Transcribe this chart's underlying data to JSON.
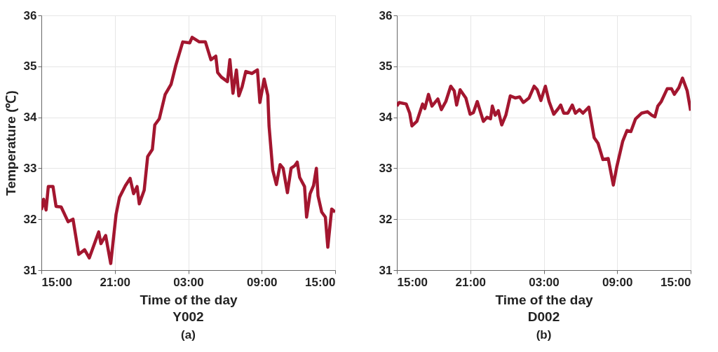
{
  "chart_data": [
    {
      "type": "line",
      "title": "Y002",
      "subtitle": "(a)",
      "xlabel": "Time of the day",
      "ylabel": "Temperature (℃)",
      "xlim": [
        "2000-01-01T15:00",
        "2000-01-02T15:00"
      ],
      "xticks": [
        {
          "value": "2000-01-01T15:00",
          "label": "15:00"
        },
        {
          "value": "2000-01-01T21:00",
          "label": "21:00"
        },
        {
          "value": "2000-01-02T03:00",
          "label": "03:00"
        },
        {
          "value": "2000-01-02T09:00",
          "label": "09:00"
        },
        {
          "value": "2000-01-02T15:00",
          "label": "15:00"
        }
      ],
      "ylim": [
        31,
        36
      ],
      "yticks": [
        31,
        32,
        33,
        34,
        35,
        36
      ],
      "grid": true,
      "legend": false,
      "marker": "none",
      "line_style": "solid",
      "series": [
        {
          "color": "#a3162f",
          "x": [
            "2000-01-01T15:00",
            "2000-01-01T15:11",
            "2000-01-01T15:23",
            "2000-01-01T15:34",
            "2000-01-01T15:57",
            "2000-01-01T16:12",
            "2000-01-01T16:37",
            "2000-01-01T17:11",
            "2000-01-01T17:35",
            "2000-01-01T18:03",
            "2000-01-01T18:32",
            "2000-01-01T18:55",
            "2000-01-01T19:41",
            "2000-01-01T19:52",
            "2000-01-01T20:15",
            "2000-01-01T20:40",
            "2000-01-01T21:06",
            "2000-01-01T21:23",
            "2000-01-01T21:52",
            "2000-01-01T22:15",
            "2000-01-01T22:32",
            "2000-01-01T22:49",
            "2000-01-01T23:00",
            "2000-01-01T23:24",
            "2000-01-01T23:41",
            "2000-01-02T00:04",
            "2000-01-02T00:16",
            "2000-01-02T00:38",
            "2000-01-02T01:07",
            "2000-01-02T01:36",
            "2000-01-02T01:59",
            "2000-01-02T02:33",
            "2000-01-02T03:07",
            "2000-01-02T03:19",
            "2000-01-02T03:54",
            "2000-01-02T04:24",
            "2000-01-02T04:51",
            "2000-01-02T05:15",
            "2000-01-02T05:24",
            "2000-01-02T05:42",
            "2000-01-02T06:12",
            "2000-01-02T06:24",
            "2000-01-02T06:39",
            "2000-01-02T06:56",
            "2000-01-02T07:08",
            "2000-01-02T07:24",
            "2000-01-02T07:42",
            "2000-01-02T08:12",
            "2000-01-02T08:39",
            "2000-01-02T08:51",
            "2000-01-02T09:12",
            "2000-01-02T09:30",
            "2000-01-02T09:36",
            "2000-01-02T09:54",
            "2000-01-02T10:12",
            "2000-01-02T10:30",
            "2000-01-02T10:45",
            "2000-01-02T11:06",
            "2000-01-02T11:24",
            "2000-01-02T11:42",
            "2000-01-02T11:54",
            "2000-01-02T12:06",
            "2000-01-02T12:30",
            "2000-01-02T12:40",
            "2000-01-02T12:57",
            "2000-01-02T13:14",
            "2000-01-02T13:28",
            "2000-01-02T13:36",
            "2000-01-02T13:54",
            "2000-01-02T14:12",
            "2000-01-02T14:24",
            "2000-01-02T14:43",
            "2000-01-02T15:00"
          ],
          "values": [
            32.18,
            32.39,
            32.18,
            32.64,
            32.64,
            32.25,
            32.24,
            31.95,
            32.0,
            31.31,
            31.4,
            31.24,
            31.75,
            31.52,
            31.68,
            31.13,
            32.09,
            32.43,
            32.66,
            32.8,
            32.5,
            32.64,
            32.3,
            32.57,
            33.23,
            33.37,
            33.85,
            33.97,
            34.45,
            34.65,
            35.02,
            35.48,
            35.46,
            35.57,
            35.48,
            35.48,
            35.13,
            35.2,
            34.88,
            34.79,
            34.7,
            35.13,
            34.47,
            34.93,
            34.42,
            34.6,
            34.9,
            34.86,
            34.93,
            34.29,
            34.75,
            34.43,
            33.83,
            32.96,
            32.68,
            33.07,
            33.0,
            32.52,
            33.0,
            33.05,
            33.12,
            32.82,
            32.64,
            32.04,
            32.5,
            32.66,
            33.0,
            32.46,
            32.14,
            32.04,
            31.45,
            32.2,
            32.14
          ]
        }
      ]
    },
    {
      "type": "line",
      "title": "D002",
      "subtitle": "(b)",
      "xlabel": "Time of the day",
      "xlim": [
        "2000-01-01T15:00",
        "2000-01-02T15:00"
      ],
      "xticks": [
        {
          "value": "2000-01-01T15:00",
          "label": "15:00"
        },
        {
          "value": "2000-01-01T21:00",
          "label": "21:00"
        },
        {
          "value": "2000-01-02T03:00",
          "label": "03:00"
        },
        {
          "value": "2000-01-02T09:00",
          "label": "09:00"
        },
        {
          "value": "2000-01-02T15:00",
          "label": "15:00"
        }
      ],
      "ylim": [
        31,
        36
      ],
      "yticks": [
        31,
        32,
        33,
        34,
        35,
        36
      ],
      "grid": true,
      "legend": false,
      "marker": "none",
      "line_style": "solid",
      "series": [
        {
          "color": "#a3162f",
          "x": [
            "2000-01-01T15:00",
            "2000-01-01T15:11",
            "2000-01-01T15:46",
            "2000-01-01T16:03",
            "2000-01-01T16:14",
            "2000-01-01T16:38",
            "2000-01-01T17:06",
            "2000-01-01T17:17",
            "2000-01-01T17:35",
            "2000-01-01T17:52",
            "2000-01-01T18:21",
            "2000-01-01T18:38",
            "2000-01-01T19:00",
            "2000-01-01T19:24",
            "2000-01-01T19:41",
            "2000-01-01T19:53",
            "2000-01-01T20:10",
            "2000-01-01T20:38",
            "2000-01-01T20:59",
            "2000-01-01T21:15",
            "2000-01-01T21:34",
            "2000-01-01T22:04",
            "2000-01-01T22:22",
            "2000-01-01T22:39",
            "2000-01-01T22:48",
            "2000-01-01T23:02",
            "2000-01-01T23:17",
            "2000-01-01T23:34",
            "2000-01-01T23:54",
            "2000-01-02T00:16",
            "2000-01-02T00:40",
            "2000-01-02T01:02",
            "2000-01-02T01:20",
            "2000-01-02T01:48",
            "2000-01-02T02:13",
            "2000-01-02T02:28",
            "2000-01-02T02:46",
            "2000-01-02T03:08",
            "2000-01-02T03:26",
            "2000-01-02T03:49",
            "2000-01-02T04:11",
            "2000-01-02T04:23",
            "2000-01-02T04:38",
            "2000-01-02T04:58",
            "2000-01-02T05:20",
            "2000-01-02T05:35",
            "2000-01-02T05:55",
            "2000-01-02T06:12",
            "2000-01-02T06:41",
            "2000-01-02T07:07",
            "2000-01-02T07:26",
            "2000-01-02T07:50",
            "2000-01-02T08:16",
            "2000-01-02T08:41",
            "2000-01-02T08:58",
            "2000-01-02T09:27",
            "2000-01-02T09:48",
            "2000-01-02T10:07",
            "2000-01-02T10:30",
            "2000-01-02T10:59",
            "2000-01-02T11:28",
            "2000-01-02T11:50",
            "2000-01-02T12:05",
            "2000-01-02T12:19",
            "2000-01-02T12:36",
            "2000-01-02T13:05",
            "2000-01-02T13:26",
            "2000-01-02T13:40",
            "2000-01-02T14:02",
            "2000-01-02T14:20",
            "2000-01-02T14:43",
            "2000-01-02T15:00"
          ],
          "values": [
            34.22,
            34.29,
            34.26,
            34.08,
            33.83,
            33.92,
            34.26,
            34.17,
            34.45,
            34.22,
            34.36,
            34.15,
            34.31,
            34.61,
            34.52,
            34.24,
            34.54,
            34.38,
            34.06,
            34.09,
            34.31,
            33.92,
            34.0,
            33.97,
            34.22,
            34.04,
            34.13,
            33.85,
            34.04,
            34.42,
            34.38,
            34.4,
            34.29,
            34.38,
            34.61,
            34.54,
            34.33,
            34.61,
            34.31,
            34.06,
            34.17,
            34.24,
            34.08,
            34.08,
            34.24,
            34.08,
            34.15,
            34.08,
            34.2,
            33.6,
            33.49,
            33.17,
            33.19,
            32.67,
            33.03,
            33.53,
            33.74,
            33.72,
            33.97,
            34.08,
            34.11,
            34.04,
            34.01,
            34.22,
            34.31,
            34.56,
            34.56,
            34.45,
            34.58,
            34.77,
            34.52,
            34.13
          ]
        }
      ]
    }
  ]
}
